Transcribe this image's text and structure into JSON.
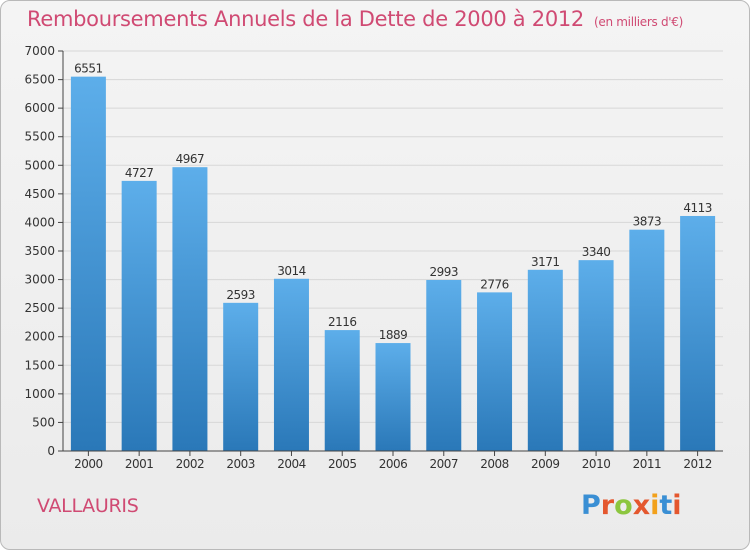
{
  "chart_data": {
    "type": "bar",
    "title": "Remboursements Annuels de la Dette de 2000 à 2012",
    "subtitle": "(en milliers d'€)",
    "categories": [
      "2000",
      "2001",
      "2002",
      "2003",
      "2004",
      "2005",
      "2006",
      "2007",
      "2008",
      "2009",
      "2010",
      "2011",
      "2012"
    ],
    "values": [
      6551,
      4727,
      4967,
      2593,
      3014,
      2116,
      1889,
      2993,
      2776,
      3171,
      3340,
      3873,
      4113
    ],
    "ylim": [
      0,
      7000
    ],
    "yticks": [
      0,
      500,
      1000,
      1500,
      2000,
      2500,
      3000,
      3500,
      4000,
      4500,
      5000,
      5500,
      6000,
      6500,
      7000
    ],
    "grid": true,
    "legend": "none",
    "colors": {
      "bar_top": "#5daeea",
      "bar_bottom": "#2a78b8",
      "grid": "#d7d7d7",
      "title": "#d04a73",
      "axis": "#444444"
    }
  },
  "footer": {
    "city": "VALLAURIS",
    "logo_text": "Proxiti",
    "logo_colors": [
      "#3a8fd4",
      "#e4572e",
      "#8cc63f",
      "#e4572e",
      "#f2a11b",
      "#3a8fd4",
      "#e4572e"
    ]
  }
}
